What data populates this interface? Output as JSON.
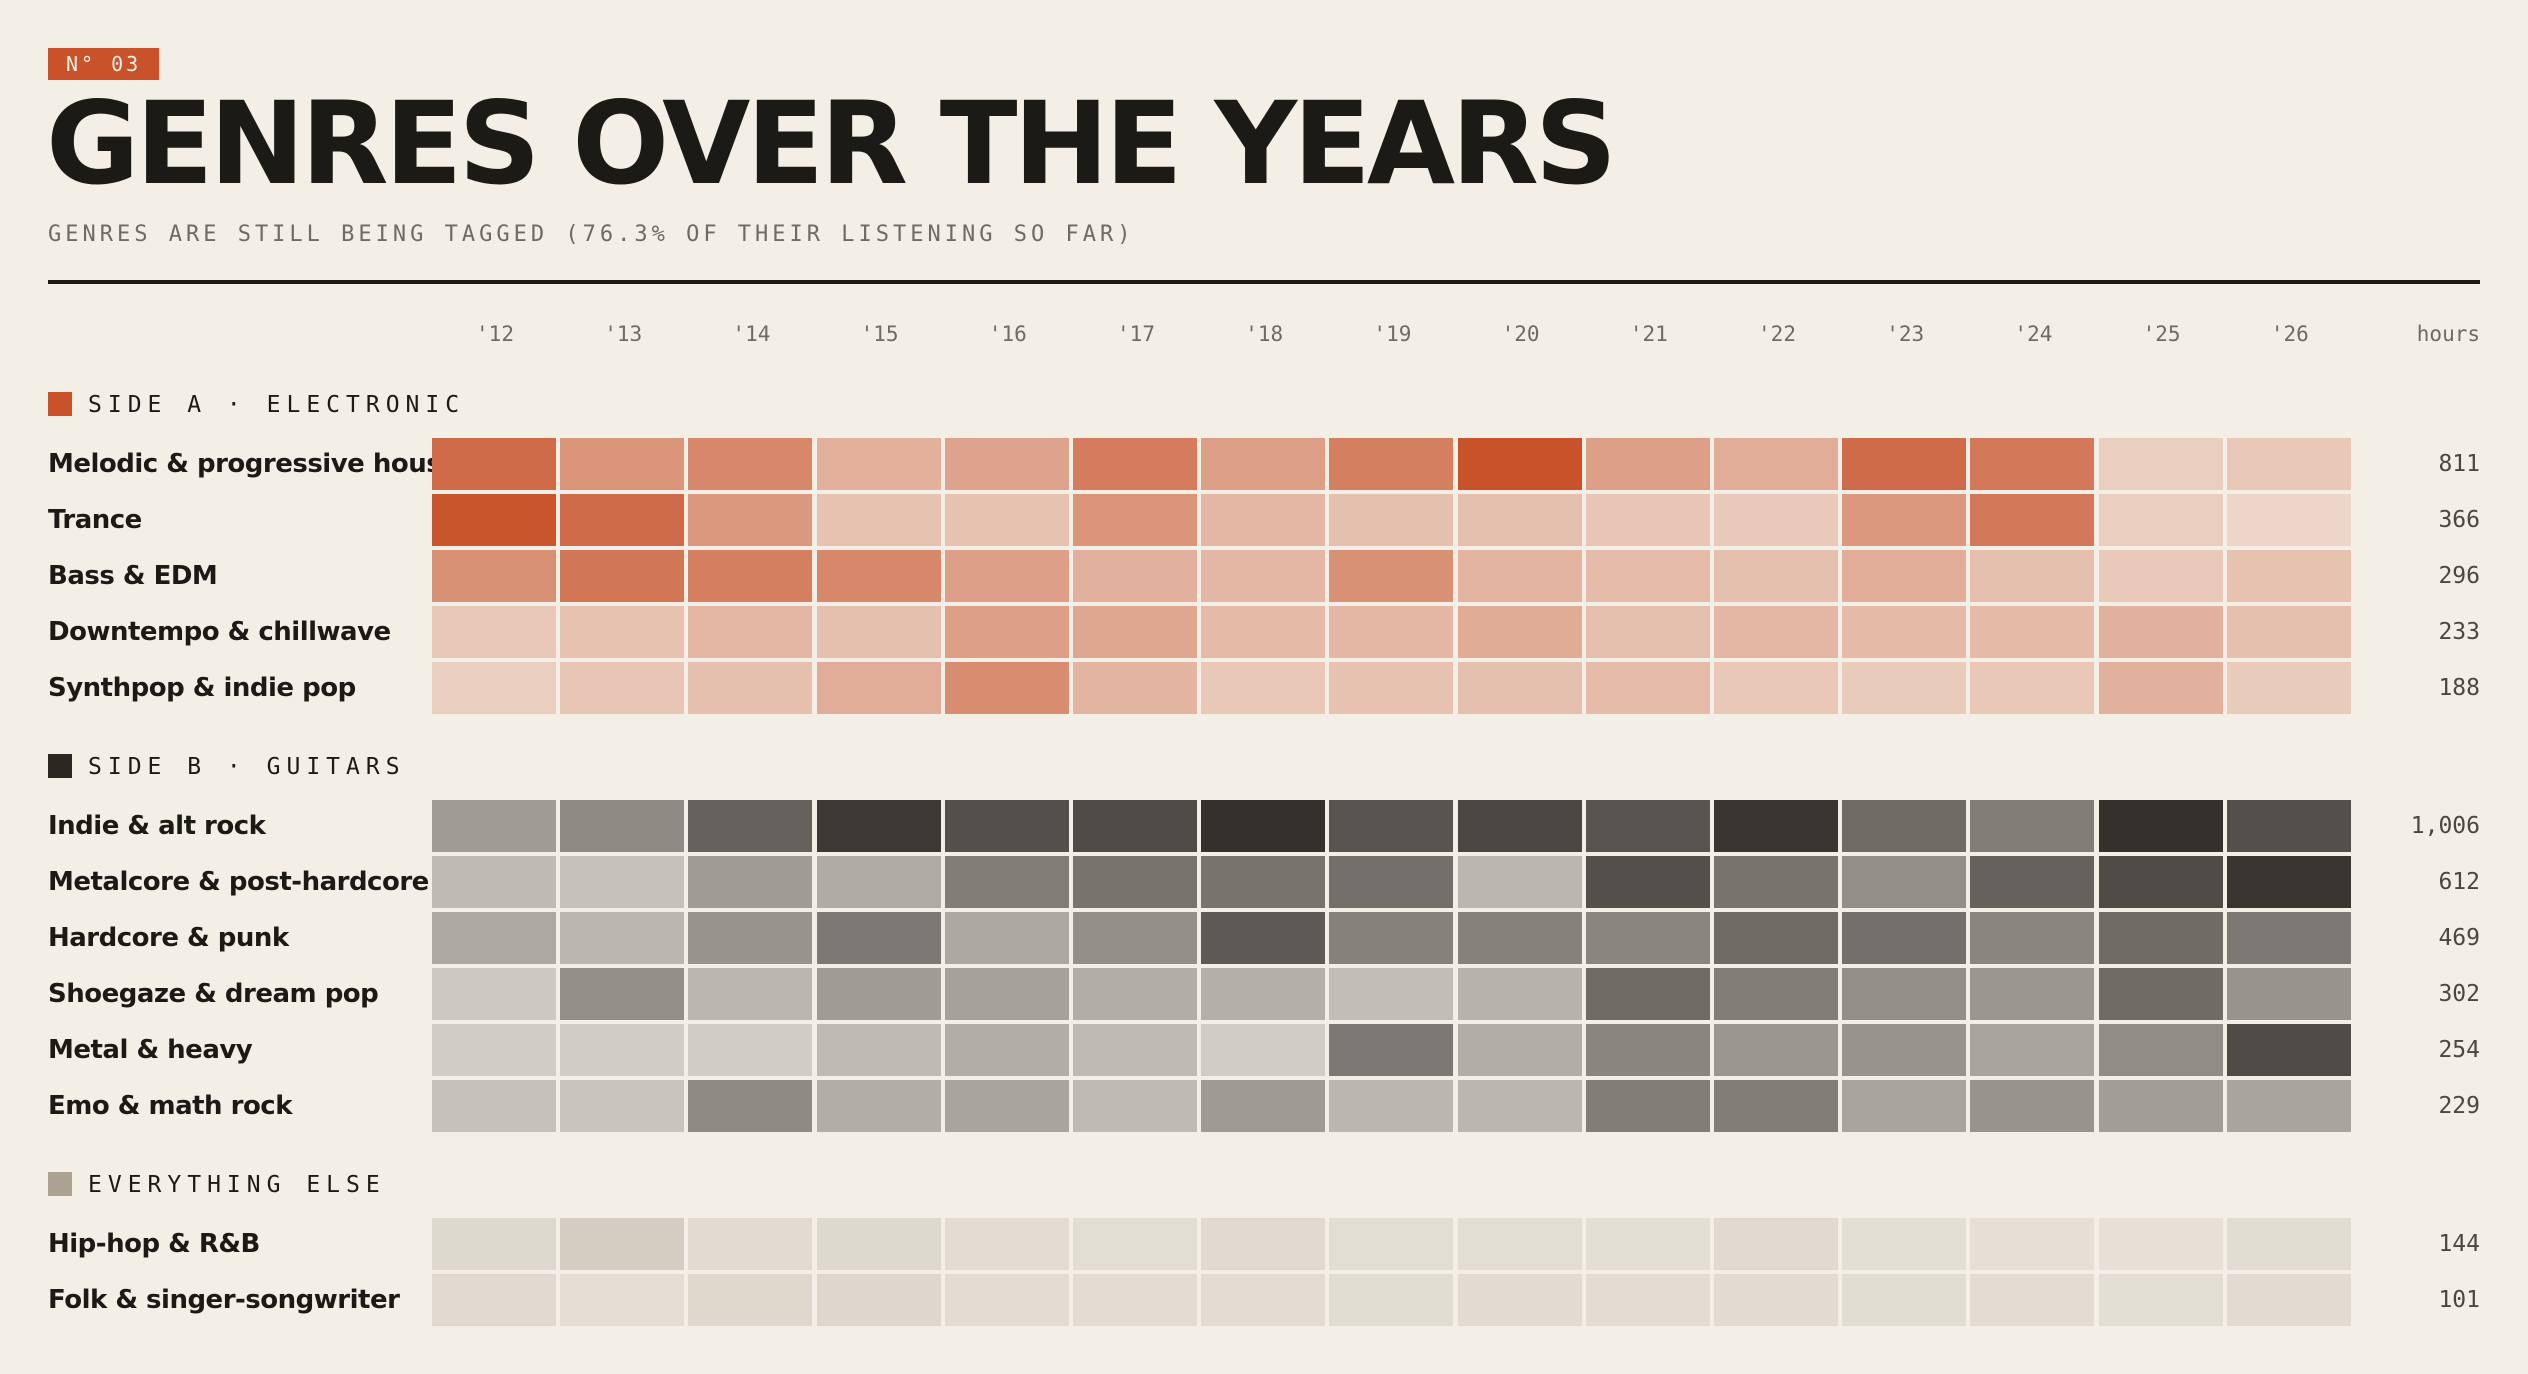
{
  "header": {
    "badge": "N° 03",
    "title": "GENRES OVER THE YEARS",
    "subtitle": "GENRES ARE STILL BEING TAGGED (76.3% OF THEIR LISTENING SO FAR)",
    "hours_label": "hours"
  },
  "colors": {
    "background": "#f3eee6",
    "accent": "#c8522a",
    "electronic_max": "#c8522a",
    "guitars_max": "#2b2824",
    "else_swatch": "#aba392"
  },
  "chart_data": {
    "type": "heatmap",
    "title": "GENRES OVER THE YEARS",
    "subtitle": "GENRES ARE STILL BEING TAGGED (76.3% OF THEIR LISTENING SO FAR)",
    "years": [
      "'12",
      "'13",
      "'14",
      "'15",
      "'16",
      "'17",
      "'18",
      "'19",
      "'20",
      "'21",
      "'22",
      "'23",
      "'24",
      "'25",
      "'26"
    ],
    "value_scale": "relative intensity 0-1 per section",
    "sections": [
      {
        "label": "SIDE A · ELECTRONIC",
        "color": "#c8522a",
        "rows": [
          {
            "genre": "Melodic & progressive house",
            "hours": "811",
            "intensity": [
              0.82,
              0.52,
              0.62,
              0.33,
              0.42,
              0.7,
              0.45,
              0.68,
              1.0,
              0.45,
              0.35,
              0.82,
              0.72,
              0.12,
              0.16
            ]
          },
          {
            "genre": "Trance",
            "hours": "366",
            "intensity": [
              0.98,
              0.82,
              0.5,
              0.2,
              0.2,
              0.52,
              0.28,
              0.22,
              0.22,
              0.18,
              0.15,
              0.5,
              0.72,
              0.12,
              0.06
            ]
          },
          {
            "genre": "Bass & EDM",
            "hours": "296",
            "intensity": [
              0.55,
              0.74,
              0.68,
              0.62,
              0.45,
              0.32,
              0.28,
              0.55,
              0.3,
              0.25,
              0.22,
              0.35,
              0.22,
              0.15,
              0.2
            ]
          },
          {
            "genre": "Downtempo & chillwave",
            "hours": "233",
            "intensity": [
              0.16,
              0.2,
              0.28,
              0.22,
              0.45,
              0.4,
              0.26,
              0.28,
              0.36,
              0.22,
              0.28,
              0.26,
              0.26,
              0.32,
              0.22
            ]
          },
          {
            "genre": "Synthpop & indie pop",
            "hours": "188",
            "intensity": [
              0.12,
              0.18,
              0.22,
              0.35,
              0.58,
              0.3,
              0.16,
              0.2,
              0.22,
              0.25,
              0.16,
              0.14,
              0.16,
              0.32,
              0.14
            ]
          }
        ]
      },
      {
        "label": "SIDE B · GUITARS",
        "color": "#2b2824",
        "rows": [
          {
            "genre": "Indie & alt rock",
            "hours": "1,006",
            "intensity": [
              0.35,
              0.45,
              0.68,
              0.9,
              0.78,
              0.8,
              0.95,
              0.75,
              0.82,
              0.75,
              0.92,
              0.62,
              0.52,
              0.95,
              0.78
            ]
          },
          {
            "genre": "Metalcore & post-hardcore",
            "hours": "612",
            "intensity": [
              0.18,
              0.14,
              0.35,
              0.26,
              0.52,
              0.58,
              0.58,
              0.6,
              0.2,
              0.78,
              0.58,
              0.42,
              0.68,
              0.8,
              0.92
            ]
          },
          {
            "genre": "Hardcore & punk",
            "hours": "469",
            "intensity": [
              0.27,
              0.2,
              0.4,
              0.55,
              0.28,
              0.42,
              0.72,
              0.5,
              0.5,
              0.48,
              0.62,
              0.6,
              0.48,
              0.62,
              0.55
            ]
          },
          {
            "genre": "Shoegaze & dream pop",
            "hours": "302",
            "intensity": [
              0.1,
              0.42,
              0.2,
              0.35,
              0.32,
              0.25,
              0.24,
              0.16,
              0.22,
              0.62,
              0.52,
              0.42,
              0.38,
              0.62,
              0.4
            ]
          },
          {
            "genre": "Metal & heavy",
            "hours": "254",
            "intensity": [
              0.08,
              0.08,
              0.08,
              0.18,
              0.25,
              0.18,
              0.08,
              0.55,
              0.25,
              0.48,
              0.38,
              0.4,
              0.3,
              0.44,
              0.8
            ]
          },
          {
            "genre": "Emo & math rock",
            "hours": "229",
            "intensity": [
              0.14,
              0.12,
              0.45,
              0.25,
              0.3,
              0.18,
              0.36,
              0.2,
              0.2,
              0.52,
              0.52,
              0.3,
              0.4,
              0.34,
              0.3
            ]
          }
        ]
      },
      {
        "label": "EVERYTHING ELSE",
        "color": "#aba392",
        "rows": [
          {
            "genre": "Hip-hop & R&B",
            "hours": "144",
            "intensity": [
              0.3,
              0.62,
              0.22,
              0.3,
              0.2,
              0.15,
              0.25,
              0.15,
              0.15,
              0.12,
              0.25,
              0.12,
              0.1,
              0.08,
              0.18
            ]
          },
          {
            "genre": "Folk & singer-songwriter",
            "hours": "101",
            "intensity": [
              0.25,
              0.14,
              0.32,
              0.34,
              0.2,
              0.2,
              0.2,
              0.18,
              0.22,
              0.2,
              0.22,
              0.18,
              0.2,
              0.12,
              0.22
            ]
          }
        ]
      }
    ]
  }
}
